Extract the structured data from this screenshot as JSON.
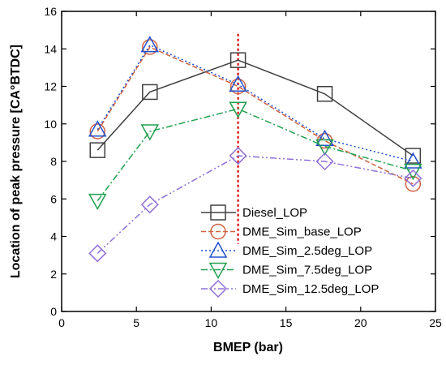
{
  "chart_data": {
    "type": "line",
    "title": "",
    "xlabel": "BMEP (bar)",
    "ylabel": "Location of peak pressure [CA°BTDC]",
    "xlim": [
      0,
      25
    ],
    "ylim": [
      0,
      16
    ],
    "xticks": [
      "0",
      "5",
      "10",
      "15",
      "20",
      "25"
    ],
    "yticks": [
      "0",
      "2",
      "4",
      "6",
      "8",
      "10",
      "12",
      "14",
      "16"
    ],
    "grid": false,
    "legend_position": "bottom-right",
    "vertical_reference_line": {
      "x": 11.8,
      "color": "#e02020",
      "style": "dotted"
    },
    "series": [
      {
        "name": "Diesel_LOP",
        "color": "#404040",
        "marker": "square",
        "line_style": "solid",
        "points": [
          [
            2.4,
            8.6
          ],
          [
            5.9,
            11.7
          ],
          [
            11.8,
            13.4
          ],
          [
            17.6,
            11.6
          ],
          [
            23.5,
            8.3
          ]
        ]
      },
      {
        "name": "DME_Sim_base_LOP",
        "color": "#d06040",
        "marker": "circle",
        "line_style": "dashed",
        "points": [
          [
            2.4,
            9.6
          ],
          [
            5.9,
            14.1
          ],
          [
            11.8,
            12.0
          ],
          [
            17.6,
            9.1
          ],
          [
            23.5,
            6.8
          ]
        ]
      },
      {
        "name": "DME_Sim_2.5deg_LOP",
        "color": "#2050d0",
        "marker": "triangle-up",
        "line_style": "dotted",
        "points": [
          [
            2.4,
            9.7
          ],
          [
            5.9,
            14.2
          ],
          [
            11.8,
            12.1
          ],
          [
            17.6,
            9.2
          ],
          [
            23.5,
            8.0
          ]
        ]
      },
      {
        "name": "DME_Sim_7.5deg_LOP",
        "color": "#20a050",
        "marker": "triangle-down",
        "line_style": "dashdot",
        "points": [
          [
            2.4,
            5.9
          ],
          [
            5.9,
            9.6
          ],
          [
            11.8,
            10.8
          ],
          [
            17.6,
            8.8
          ],
          [
            23.5,
            7.5
          ]
        ]
      },
      {
        "name": "DME_Sim_12.5deg_LOP",
        "color": "#9070d8",
        "marker": "diamond",
        "line_style": "dashdotdot",
        "points": [
          [
            2.4,
            3.1
          ],
          [
            5.9,
            5.7
          ],
          [
            11.8,
            8.3
          ],
          [
            17.6,
            8.0
          ],
          [
            23.5,
            7.1
          ]
        ]
      }
    ]
  }
}
